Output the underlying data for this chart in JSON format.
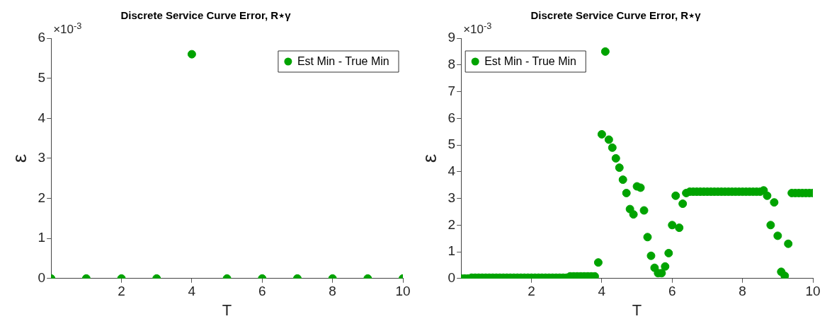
{
  "chart_data": [
    {
      "type": "scatter",
      "title": "Discrete Service Curve Error, R⋆γ",
      "xlabel": "T",
      "ylabel": "ε",
      "annotations": [
        "×10$^{-3}$"
      ],
      "x": [
        0,
        1,
        2,
        3,
        4,
        5,
        6,
        7,
        8,
        9,
        10
      ],
      "series": [
        {
          "name": "Est Min - True Min",
          "color": "#00a300",
          "values": [
            0,
            0,
            0,
            0,
            5.6,
            0,
            0,
            0,
            0,
            0,
            0
          ]
        }
      ],
      "xlim": [
        0,
        10
      ],
      "xticks": [
        2,
        4,
        6,
        8,
        10
      ],
      "ylim": [
        0,
        6
      ],
      "yticks": [
        0,
        1,
        2,
        3,
        4,
        5,
        6
      ],
      "grid": false,
      "legend": "top right",
      "marker": "circle"
    },
    {
      "type": "scatter",
      "title": "Discrete Service Curve Error, R⋆γ",
      "xlabel": "T",
      "ylabel": "ε",
      "annotations": [
        "×10$^{-3}$"
      ],
      "x": [
        0,
        0.1,
        0.2,
        0.3,
        0.4,
        0.5,
        0.6,
        0.7,
        0.8,
        0.9,
        1,
        1.1,
        1.2,
        1.3,
        1.4,
        1.5,
        1.6,
        1.7,
        1.8,
        1.9,
        2,
        2.1,
        2.2,
        2.3,
        2.4,
        2.5,
        2.6,
        2.7,
        2.8,
        2.9,
        3,
        3.1,
        3.2,
        3.3,
        3.4,
        3.5,
        3.6,
        3.7,
        3.8,
        3.9,
        4,
        4.1,
        4.2,
        4.3,
        4.4,
        4.5,
        4.6,
        4.7,
        4.8,
        4.9,
        5,
        5.1,
        5.2,
        5.3,
        5.4,
        5.5,
        5.6,
        5.7,
        5.8,
        5.9,
        6,
        6.1,
        6.2,
        6.3,
        6.4,
        6.5,
        6.6,
        6.7,
        6.8,
        6.9,
        7,
        7.1,
        7.2,
        7.3,
        7.4,
        7.5,
        7.6,
        7.7,
        7.8,
        7.9,
        8,
        8.1,
        8.2,
        8.3,
        8.4,
        8.5,
        8.6,
        8.7,
        8.8,
        8.9,
        9,
        9.1,
        9.2,
        9.3,
        9.4,
        9.5,
        9.6,
        9.7,
        9.8,
        9.9,
        10
      ],
      "series": [
        {
          "name": "Est Min - True Min",
          "color": "#00a300",
          "values": [
            0,
            0,
            0,
            0.03,
            0.03,
            0.03,
            0.03,
            0.03,
            0.03,
            0.03,
            0.03,
            0.03,
            0.03,
            0.03,
            0.03,
            0.03,
            0.03,
            0.03,
            0.03,
            0.03,
            0.03,
            0.03,
            0.03,
            0.03,
            0.03,
            0.03,
            0.03,
            0.03,
            0.03,
            0.03,
            0.03,
            0.08,
            0.08,
            0.08,
            0.08,
            0.08,
            0.08,
            0.08,
            0.08,
            0.6,
            5.4,
            8.5,
            5.2,
            4.9,
            4.5,
            4.15,
            3.7,
            3.2,
            2.6,
            2.4,
            3.45,
            3.4,
            2.55,
            1.55,
            0.85,
            0.4,
            0.2,
            0.2,
            0.45,
            0.95,
            2.0,
            3.1,
            1.9,
            2.8,
            3.2,
            3.25,
            3.25,
            3.25,
            3.25,
            3.25,
            3.25,
            3.25,
            3.25,
            3.25,
            3.25,
            3.25,
            3.25,
            3.25,
            3.25,
            3.25,
            3.25,
            3.25,
            3.25,
            3.25,
            3.25,
            3.25,
            3.3,
            3.1,
            2.0,
            2.85,
            1.6,
            0.25,
            0.1,
            1.3,
            3.2,
            3.2,
            3.2,
            3.2,
            3.2,
            3.2,
            3.2
          ]
        }
      ],
      "xlim": [
        0,
        10
      ],
      "xticks": [
        2,
        4,
        6,
        8,
        10
      ],
      "ylim": [
        0,
        9
      ],
      "yticks": [
        0,
        1,
        2,
        3,
        4,
        5,
        6,
        7,
        8,
        9
      ],
      "grid": false,
      "legend": "top left",
      "marker": "circle"
    }
  ]
}
